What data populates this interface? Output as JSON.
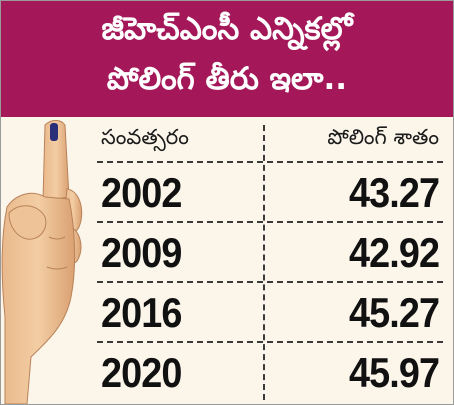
{
  "header": {
    "line1": "జీహెచ్ఎంసీ ఎన్నికల్లో",
    "line2": "పోలింగ్ తీరు ఇలా.."
  },
  "table": {
    "col_year": "సంవత్సరం",
    "col_pct": "పోలింగ్ శాతం",
    "rows": [
      {
        "year": "2002",
        "value": "43.27"
      },
      {
        "year": "2009",
        "value": "42.92"
      },
      {
        "year": "2016",
        "value": "45.27"
      },
      {
        "year": "2020",
        "value": "45.97"
      }
    ]
  },
  "colors": {
    "header_bg": "#a4185a",
    "header_text": "#ffffff",
    "body_bg": "#fbf5ea",
    "ink_mark": "#2b2f7a"
  },
  "icons": {
    "hand": "hand-with-inked-finger-icon"
  }
}
